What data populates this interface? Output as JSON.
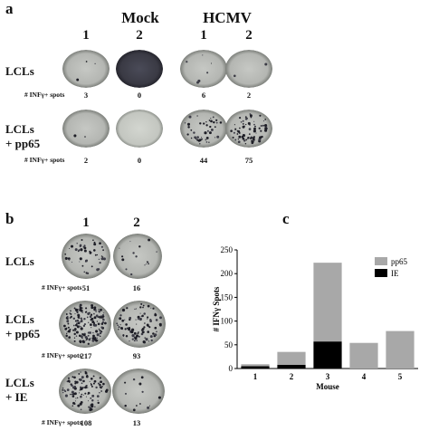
{
  "panel_a": {
    "letter": "a",
    "groups": [
      "Mock",
      "HCMV"
    ],
    "columns": [
      "1",
      "2",
      "1",
      "2"
    ],
    "rows": [
      {
        "label_lines": [
          "LCLs"
        ],
        "caption": "# INFγ+ spots",
        "counts": [
          "3",
          "0",
          "6",
          "2"
        ]
      },
      {
        "label_lines": [
          "LCLs",
          "+ pp65"
        ],
        "caption": "# INFγ+ spots",
        "counts": [
          "2",
          "0",
          "44",
          "75"
        ]
      }
    ]
  },
  "panel_b": {
    "letter": "b",
    "columns": [
      "1",
      "2"
    ],
    "rows": [
      {
        "label_lines": [
          "LCLs"
        ],
        "caption": "# INFγ+ spots",
        "counts": [
          "51",
          "16"
        ]
      },
      {
        "label_lines": [
          "LCLs",
          "+ pp65"
        ],
        "caption": "# INFγ+ spots",
        "counts": [
          "217",
          "93"
        ]
      },
      {
        "label_lines": [
          "LCLs",
          "+ IE"
        ],
        "caption": "# INFγ+ spots",
        "counts": [
          "108",
          "13"
        ]
      }
    ]
  },
  "colors": {
    "pp65": "#a8a8a8",
    "IE": "#000000",
    "well_light": "#b4b6b2",
    "well_dark": "#3a3a44"
  },
  "chart_data": {
    "letter": "c",
    "type": "bar",
    "stacked": true,
    "categories": [
      "1",
      "2",
      "3",
      "4",
      "5"
    ],
    "series": [
      {
        "name": "IE",
        "values": [
          5,
          8,
          57,
          0,
          0
        ]
      },
      {
        "name": "pp65",
        "values": [
          4,
          27,
          166,
          54,
          79
        ]
      }
    ],
    "xlabel": "Mouse",
    "ylabel": "# IFNγ Spots",
    "ylim": [
      0,
      250
    ],
    "yticks": [
      "0",
      "50",
      "100",
      "150",
      "200",
      "250"
    ],
    "legend_position": "top-right",
    "grid": false
  }
}
